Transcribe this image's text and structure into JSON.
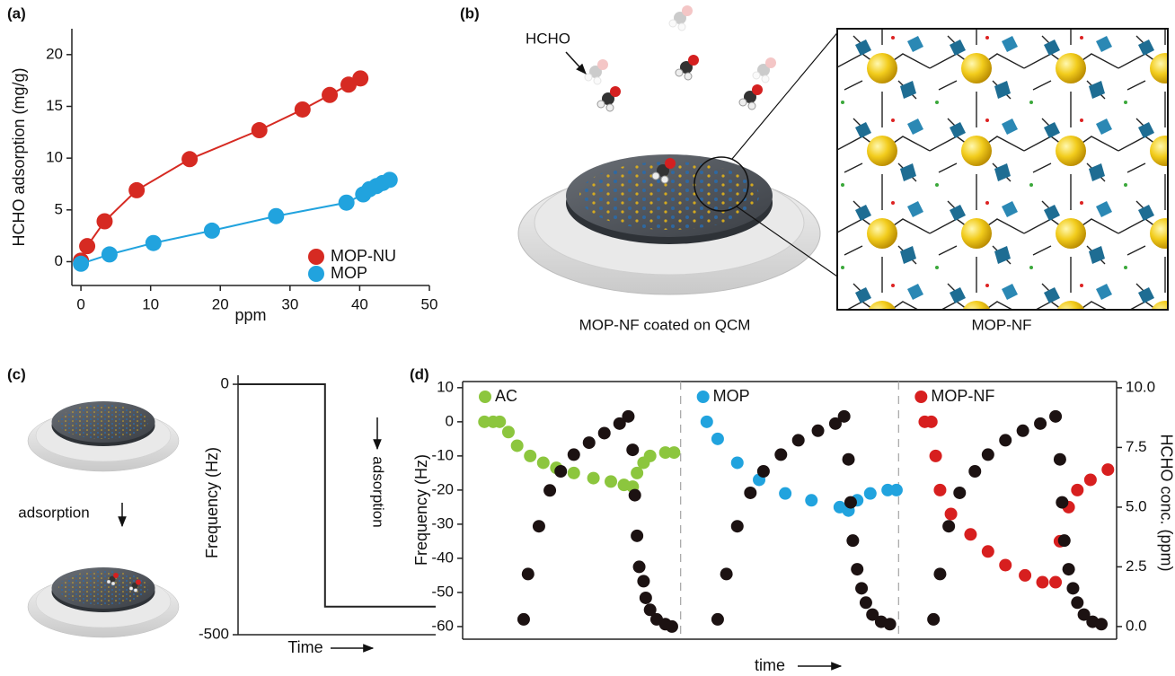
{
  "chart_data": [
    {
      "type": "line",
      "panel": "(a)",
      "x_label": "ppm",
      "y_label": "HCHO adsorption (mg/g)",
      "xlim": [
        -1.3,
        50
      ],
      "ylim": [
        -2.3,
        22.5
      ],
      "xticks": [
        0,
        10,
        20,
        30,
        40,
        50
      ],
      "yticks": [
        0,
        5,
        10,
        15,
        20
      ],
      "legend": "lower right",
      "markers": true,
      "series": [
        {
          "name": "MOP-NU",
          "color": "#d62a22",
          "x": [
            0,
            0.9,
            3.4,
            8.0,
            15.6,
            25.6,
            31.8,
            35.7,
            38.4,
            40.1
          ],
          "values": [
            0.1,
            1.5,
            3.9,
            6.9,
            9.9,
            12.7,
            14.7,
            16.1,
            17.1,
            17.7
          ]
        },
        {
          "name": "MOP",
          "color": "#21a3de",
          "x": [
            0,
            4.1,
            10.4,
            18.8,
            28.0,
            38.1,
            40.5,
            41.4,
            42.4,
            43.3,
            44.3
          ],
          "values": [
            -0.2,
            0.7,
            1.8,
            3.0,
            4.4,
            5.7,
            6.5,
            7.0,
            7.3,
            7.6,
            7.9
          ]
        }
      ]
    },
    {
      "type": "line",
      "panel": "(c)",
      "x_label": "Time",
      "y_label": "Frequency (Hz)",
      "annotation": "adsorption",
      "color": "#222222",
      "x": [
        0,
        0.44,
        0.44,
        1
      ],
      "values": [
        0,
        0,
        -444,
        -444
      ],
      "xlim": [
        0,
        1
      ],
      "ylim": [
        -500,
        18
      ],
      "yticks": [
        0,
        -500
      ]
    },
    {
      "type": "scatter",
      "panel": "(d)",
      "x_label": "time",
      "y_label": "Frequency (Hz)",
      "y2_label": "HCHO conc. (ppm)",
      "legend": "upper left",
      "xlim": [
        0,
        3
      ],
      "ylim": [
        -63.7,
        11.8
      ],
      "yticks": [
        10,
        0,
        -10,
        -20,
        -30,
        -40,
        -50,
        -60
      ],
      "y2lim": [
        -0.53,
        10.26
      ],
      "y2ticks": [
        {
          "value": 0,
          "label": "0.0"
        },
        2.5,
        {
          "value": 5,
          "label": "5.0"
        },
        7.5,
        {
          "value": 10,
          "label": "10.0"
        }
      ],
      "series": [
        {
          "name": "AC",
          "color": "#8cc63e",
          "x": [
            0.1,
            0.14,
            0.17,
            0.21,
            0.25,
            0.31,
            0.37,
            0.43,
            0.51,
            0.6,
            0.68,
            0.74,
            0.78,
            0.8,
            0.83,
            0.86,
            0.93,
            0.97
          ],
          "values": [
            0,
            0,
            0,
            -3,
            -7,
            -10,
            -12,
            -13.5,
            -15,
            -16.5,
            -17.5,
            -18.5,
            -19,
            -15,
            -12,
            -10,
            -9,
            -9
          ]
        },
        {
          "color": "#1c1212",
          "axis": "y2",
          "x": [
            0.28,
            0.3,
            0.35,
            0.4,
            0.45,
            0.51,
            0.58,
            0.65,
            0.72,
            0.76,
            0.78,
            0.79,
            0.8,
            0.81,
            0.83,
            0.84,
            0.86,
            0.89,
            0.93,
            0.96
          ],
          "values": [
            0.3,
            2.2,
            4.2,
            5.7,
            6.5,
            7.2,
            7.7,
            8.1,
            8.5,
            8.8,
            7.4,
            5.5,
            3.8,
            2.5,
            1.9,
            1.2,
            0.7,
            0.3,
            0.1,
            0.0
          ]
        },
        {
          "name": "MOP",
          "color": "#21a3de",
          "x": [
            1.12,
            1.17,
            1.26,
            1.36,
            1.48,
            1.6,
            1.73,
            1.77,
            1.81,
            1.87,
            1.95,
            1.99
          ],
          "values": [
            0,
            -5,
            -12,
            -17,
            -21,
            -23,
            -25,
            -26,
            -23,
            -21,
            -20,
            -20
          ]
        },
        {
          "color": "#1c1212",
          "axis": "y2",
          "x": [
            1.17,
            1.21,
            1.26,
            1.32,
            1.38,
            1.46,
            1.54,
            1.63,
            1.71,
            1.75,
            1.77,
            1.78,
            1.79,
            1.81,
            1.83,
            1.85,
            1.88,
            1.92,
            1.96
          ],
          "values": [
            0.3,
            2.2,
            4.2,
            5.6,
            6.5,
            7.2,
            7.8,
            8.2,
            8.5,
            8.8,
            7.0,
            5.2,
            3.6,
            2.4,
            1.6,
            1.0,
            0.5,
            0.2,
            0.1
          ]
        },
        {
          "name": "MOP-NF",
          "color": "#d71f1f",
          "x": [
            2.12,
            2.15,
            2.17,
            2.19,
            2.24,
            2.33,
            2.41,
            2.49,
            2.58,
            2.66,
            2.72,
            2.74,
            2.78,
            2.82,
            2.88,
            2.96
          ],
          "values": [
            0,
            0,
            -10,
            -20,
            -27,
            -33,
            -38,
            -42,
            -45,
            -47,
            -47,
            -35,
            -25,
            -20,
            -17,
            -14
          ]
        },
        {
          "color": "#1c1212",
          "axis": "y2",
          "x": [
            2.16,
            2.19,
            2.23,
            2.28,
            2.35,
            2.41,
            2.49,
            2.57,
            2.65,
            2.72,
            2.74,
            2.75,
            2.76,
            2.78,
            2.8,
            2.82,
            2.85,
            2.89,
            2.93
          ],
          "values": [
            0.3,
            2.2,
            4.2,
            5.6,
            6.5,
            7.2,
            7.8,
            8.2,
            8.5,
            8.8,
            7.0,
            5.2,
            3.6,
            2.4,
            1.6,
            1.0,
            0.5,
            0.2,
            0.1
          ]
        }
      ]
    }
  ],
  "illustrations": {
    "b": {
      "panel": "(b)",
      "molecule": "HCHO",
      "left_caption": "MOP-NF coated on QCM",
      "right_caption": "MOP-NF"
    },
    "c": {
      "step": "adsorption"
    }
  }
}
